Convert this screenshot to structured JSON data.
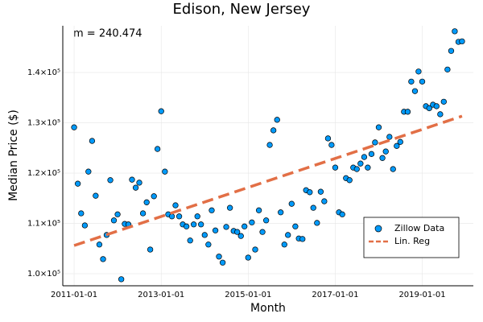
{
  "chart_data": {
    "type": "scatter",
    "title": "Edison, New Jersey",
    "x_label": "Month",
    "y_label": "Median Price ($)",
    "annotation": "m = 240.474",
    "xlim": [
      "2010-09-28",
      "2020-03-05"
    ],
    "ylim": [
      97600,
      149300
    ],
    "xticks": [
      "2011-01-01",
      "2013-01-01",
      "2015-01-01",
      "2017-01-01",
      "2019-01-01"
    ],
    "yticks": [
      {
        "value": 100000,
        "label": "1.0×10⁵"
      },
      {
        "value": 110000,
        "label": "1.1×10⁵"
      },
      {
        "value": 120000,
        "label": "1.2×10⁵"
      },
      {
        "value": 130000,
        "label": "1.3×10⁵"
      },
      {
        "value": 140000,
        "label": "1.4×10⁵"
      }
    ],
    "grid": true,
    "legend": "bottom-right",
    "series": [
      {
        "name": "Zillow Data",
        "color": "#009afa",
        "style": "points",
        "x": [
          "2011-01-01",
          "2011-02-01",
          "2011-03-01",
          "2011-04-01",
          "2011-05-01",
          "2011-06-01",
          "2011-07-01",
          "2011-08-01",
          "2011-09-01",
          "2011-10-01",
          "2011-11-01",
          "2011-12-01",
          "2012-01-01",
          "2012-02-01",
          "2012-03-01",
          "2012-04-01",
          "2012-05-01",
          "2012-06-01",
          "2012-07-01",
          "2012-08-01",
          "2012-09-01",
          "2012-10-01",
          "2012-11-01",
          "2012-12-01",
          "2013-01-01",
          "2013-02-01",
          "2013-03-01",
          "2013-04-01",
          "2013-05-01",
          "2013-06-01",
          "2013-07-01",
          "2013-08-01",
          "2013-09-01",
          "2013-10-01",
          "2013-11-01",
          "2013-12-01",
          "2014-01-01",
          "2014-02-01",
          "2014-03-01",
          "2014-04-01",
          "2014-05-01",
          "2014-06-01",
          "2014-07-01",
          "2014-08-01",
          "2014-09-01",
          "2014-10-01",
          "2014-11-01",
          "2014-12-01",
          "2015-01-01",
          "2015-02-01",
          "2015-03-01",
          "2015-04-01",
          "2015-05-01",
          "2015-06-01",
          "2015-07-01",
          "2015-08-01",
          "2015-09-01",
          "2015-10-01",
          "2015-11-01",
          "2015-12-01",
          "2016-01-01",
          "2016-02-01",
          "2016-03-01",
          "2016-04-01",
          "2016-05-01",
          "2016-06-01",
          "2016-07-01",
          "2016-08-01",
          "2016-09-01",
          "2016-10-01",
          "2016-11-01",
          "2016-12-01",
          "2017-01-01",
          "2017-02-01",
          "2017-03-01",
          "2017-04-01",
          "2017-05-01",
          "2017-06-01",
          "2017-07-01",
          "2017-08-01",
          "2017-09-01",
          "2017-10-01",
          "2017-11-01",
          "2017-12-01",
          "2018-01-01",
          "2018-02-01",
          "2018-03-01",
          "2018-04-01",
          "2018-05-01",
          "2018-06-01",
          "2018-07-01",
          "2018-08-01",
          "2018-09-01",
          "2018-10-01",
          "2018-11-01",
          "2018-12-01",
          "2019-01-01",
          "2019-02-01",
          "2019-03-01",
          "2019-04-01",
          "2019-05-01",
          "2019-06-01",
          "2019-07-01",
          "2019-08-01",
          "2019-09-01",
          "2019-10-01",
          "2019-11-01",
          "2019-12-01"
        ],
        "values": [
          129100,
          117900,
          112000,
          109600,
          120300,
          126400,
          115500,
          105800,
          102900,
          107700,
          118600,
          110600,
          111800,
          98900,
          109900,
          109800,
          118700,
          117100,
          118100,
          112000,
          114200,
          104800,
          115400,
          124800,
          132300,
          120300,
          111800,
          111400,
          113600,
          111400,
          109800,
          109400,
          106600,
          109800,
          111400,
          109800,
          107700,
          105800,
          112600,
          108600,
          103400,
          102200,
          109300,
          113100,
          108500,
          108300,
          107500,
          109400,
          103200,
          110200,
          104800,
          112600,
          108300,
          110600,
          125600,
          128500,
          130600,
          112200,
          105800,
          107700,
          113900,
          109400,
          107000,
          106900,
          116600,
          116200,
          113100,
          110100,
          116300,
          114400,
          126900,
          125600,
          121100,
          112200,
          111800,
          119000,
          118600,
          121100,
          120800,
          121900,
          123200,
          121100,
          123800,
          126100,
          129100,
          123000,
          124300,
          127200,
          120800,
          125400,
          126200,
          132200,
          132200,
          138200,
          136300,
          140200,
          138200,
          133300,
          132900,
          133600,
          133300,
          131700,
          134200,
          140600,
          144300,
          148200,
          146100,
          146200
        ]
      },
      {
        "name": "Lin. Reg",
        "color": "#e26f46",
        "style": "dashed",
        "x": [
          "2011-01-01",
          "2019-12-01"
        ],
        "values": [
          105600,
          131330
        ]
      }
    ]
  }
}
